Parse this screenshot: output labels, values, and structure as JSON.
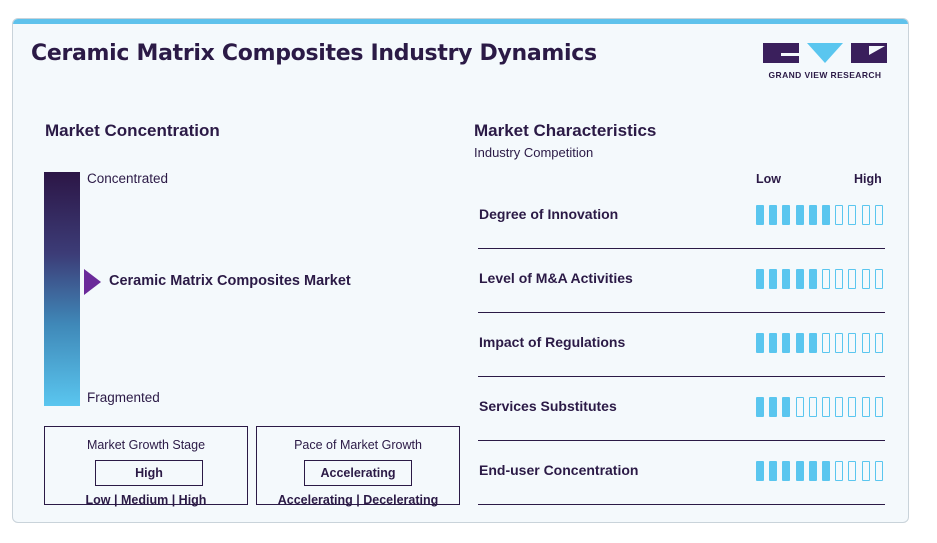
{
  "title": "Ceramic Matrix Composites Industry Dynamics",
  "logo": {
    "text": "GRAND VIEW RESEARCH",
    "icon": "grand-view-research-logo"
  },
  "market_concentration": {
    "heading": "Market Concentration",
    "top_label": "Concentrated",
    "bottom_label": "Fragmented",
    "market_label": "Ceramic Matrix Composites Market",
    "level": 0.47
  },
  "growth_stage": {
    "title": "Market Growth Stage",
    "selected": "High",
    "options": [
      "Low",
      "Medium",
      "High"
    ]
  },
  "pace_of_growth": {
    "title": "Pace of Market Growth",
    "selected": "Accelerating",
    "options": [
      "Accelerating",
      "Decelerating"
    ]
  },
  "market_characteristics": {
    "heading": "Market Characteristics",
    "subheading": "Industry Competition",
    "scale_low": "Low",
    "scale_high": "High",
    "total_segments": 10,
    "accent_color": "#5ac6ef",
    "items": [
      {
        "label": "Degree of Innovation",
        "level": 6
      },
      {
        "label": "Level of M&A Activities",
        "level": 5
      },
      {
        "label": "Impact of Regulations",
        "level": 5
      },
      {
        "label": "Services Substitutes",
        "level": 3
      },
      {
        "label": "End-user Concentration",
        "level": 6
      }
    ]
  }
}
